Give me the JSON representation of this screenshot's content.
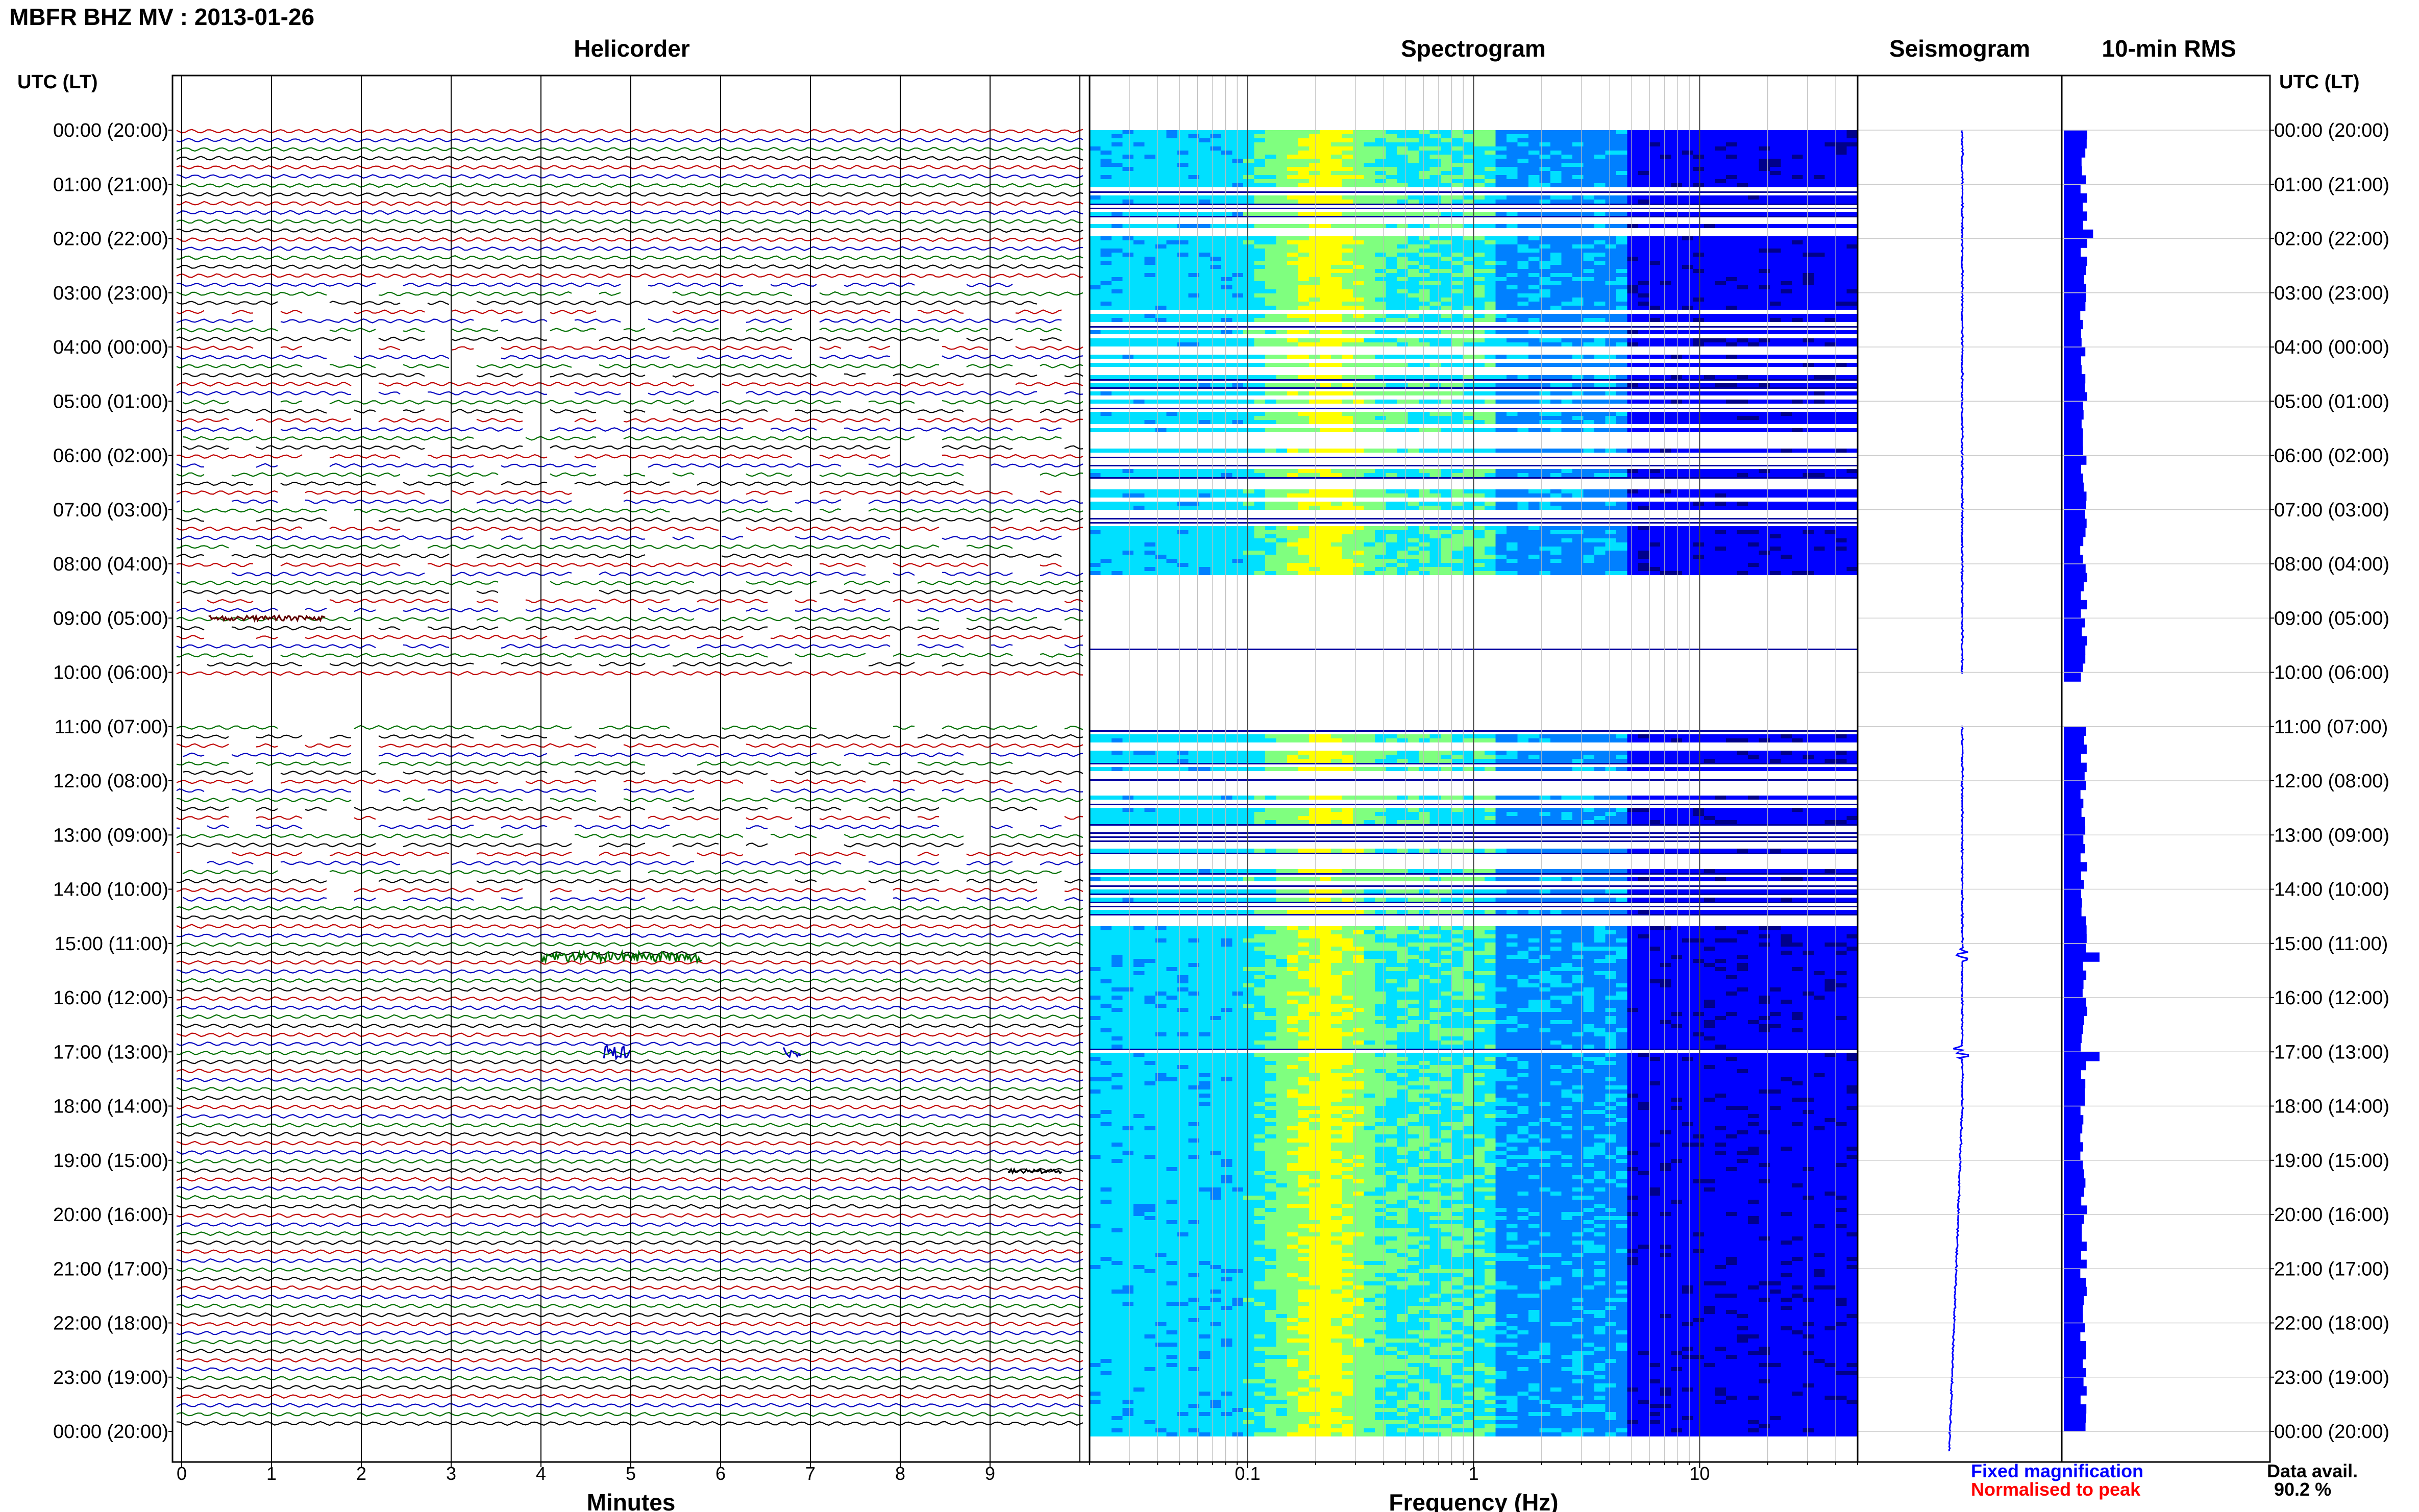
{
  "page": {
    "title": "MBFR BHZ MV : 2013-01-26",
    "utc_label": "UTC (LT)"
  },
  "panels": {
    "helicorder": "Helicorder",
    "spectrogram": "Spectrogram",
    "seismogram": "Seismogram",
    "rms": "10-min RMS"
  },
  "legend": {
    "fixed": "Fixed magnification",
    "fixed_color": "#0000ff",
    "normalised": "Normalised to peak",
    "normalised_color": "#ff0000",
    "avail_label": "Data avail.",
    "avail_value": "90.2 %"
  },
  "chart_data": [
    {
      "type": "line",
      "panel": "Helicorder",
      "xlabel": "Minutes",
      "xticks": [
        "0",
        "1",
        "2",
        "3",
        "4",
        "5",
        "6",
        "7",
        "8",
        "9"
      ],
      "xlim": [
        0,
        10
      ],
      "trace_colors": [
        "#c00000",
        "#0000c0",
        "#007000",
        "#000000"
      ],
      "traces_per_hour": 6,
      "hour_labels": [
        "00:00 (20:00)",
        "01:00 (21:00)",
        "02:00 (22:00)",
        "03:00 (23:00)",
        "04:00 (00:00)",
        "05:00 (01:00)",
        "06:00 (02:00)",
        "07:00 (03:00)",
        "08:00 (04:00)",
        "09:00 (05:00)",
        "10:00 (06:00)",
        "11:00 (07:00)",
        "12:00 (08:00)",
        "13:00 (09:00)",
        "14:00 (10:00)",
        "15:00 (11:00)",
        "16:00 (12:00)",
        "17:00 (13:00)",
        "18:00 (14:00)",
        "19:00 (15:00)",
        "20:00 (16:00)",
        "21:00 (17:00)",
        "22:00 (18:00)",
        "23:00 (19:00)",
        "00:00 (20:00)"
      ]
    },
    {
      "type": "heatmap",
      "panel": "Spectrogram",
      "xlabel": "Frequency (Hz)",
      "xscale": "log",
      "xlim": [
        0.02,
        50
      ],
      "xticks": [
        "0.1",
        "1",
        "10"
      ],
      "peak_frequency_hz": 0.22,
      "colormap": [
        "#00008b",
        "#0000ff",
        "#0080ff",
        "#00e0ff",
        "#7fff7f",
        "#ffff00"
      ],
      "data_gap_hours": [
        [
          8.2,
          10.0
        ],
        [
          10.0,
          11.0
        ]
      ]
    },
    {
      "type": "line",
      "panel": "Seismogram",
      "events_utc_hour": [
        15.2,
        17.0
      ]
    },
    {
      "type": "bar",
      "panel": "10-min RMS",
      "orientation": "horizontal",
      "peaks_utc_hour": [
        15.2,
        17.0
      ],
      "gap_hours": [
        10.05,
        10.9
      ],
      "bar_color": "#0000ff"
    }
  ]
}
